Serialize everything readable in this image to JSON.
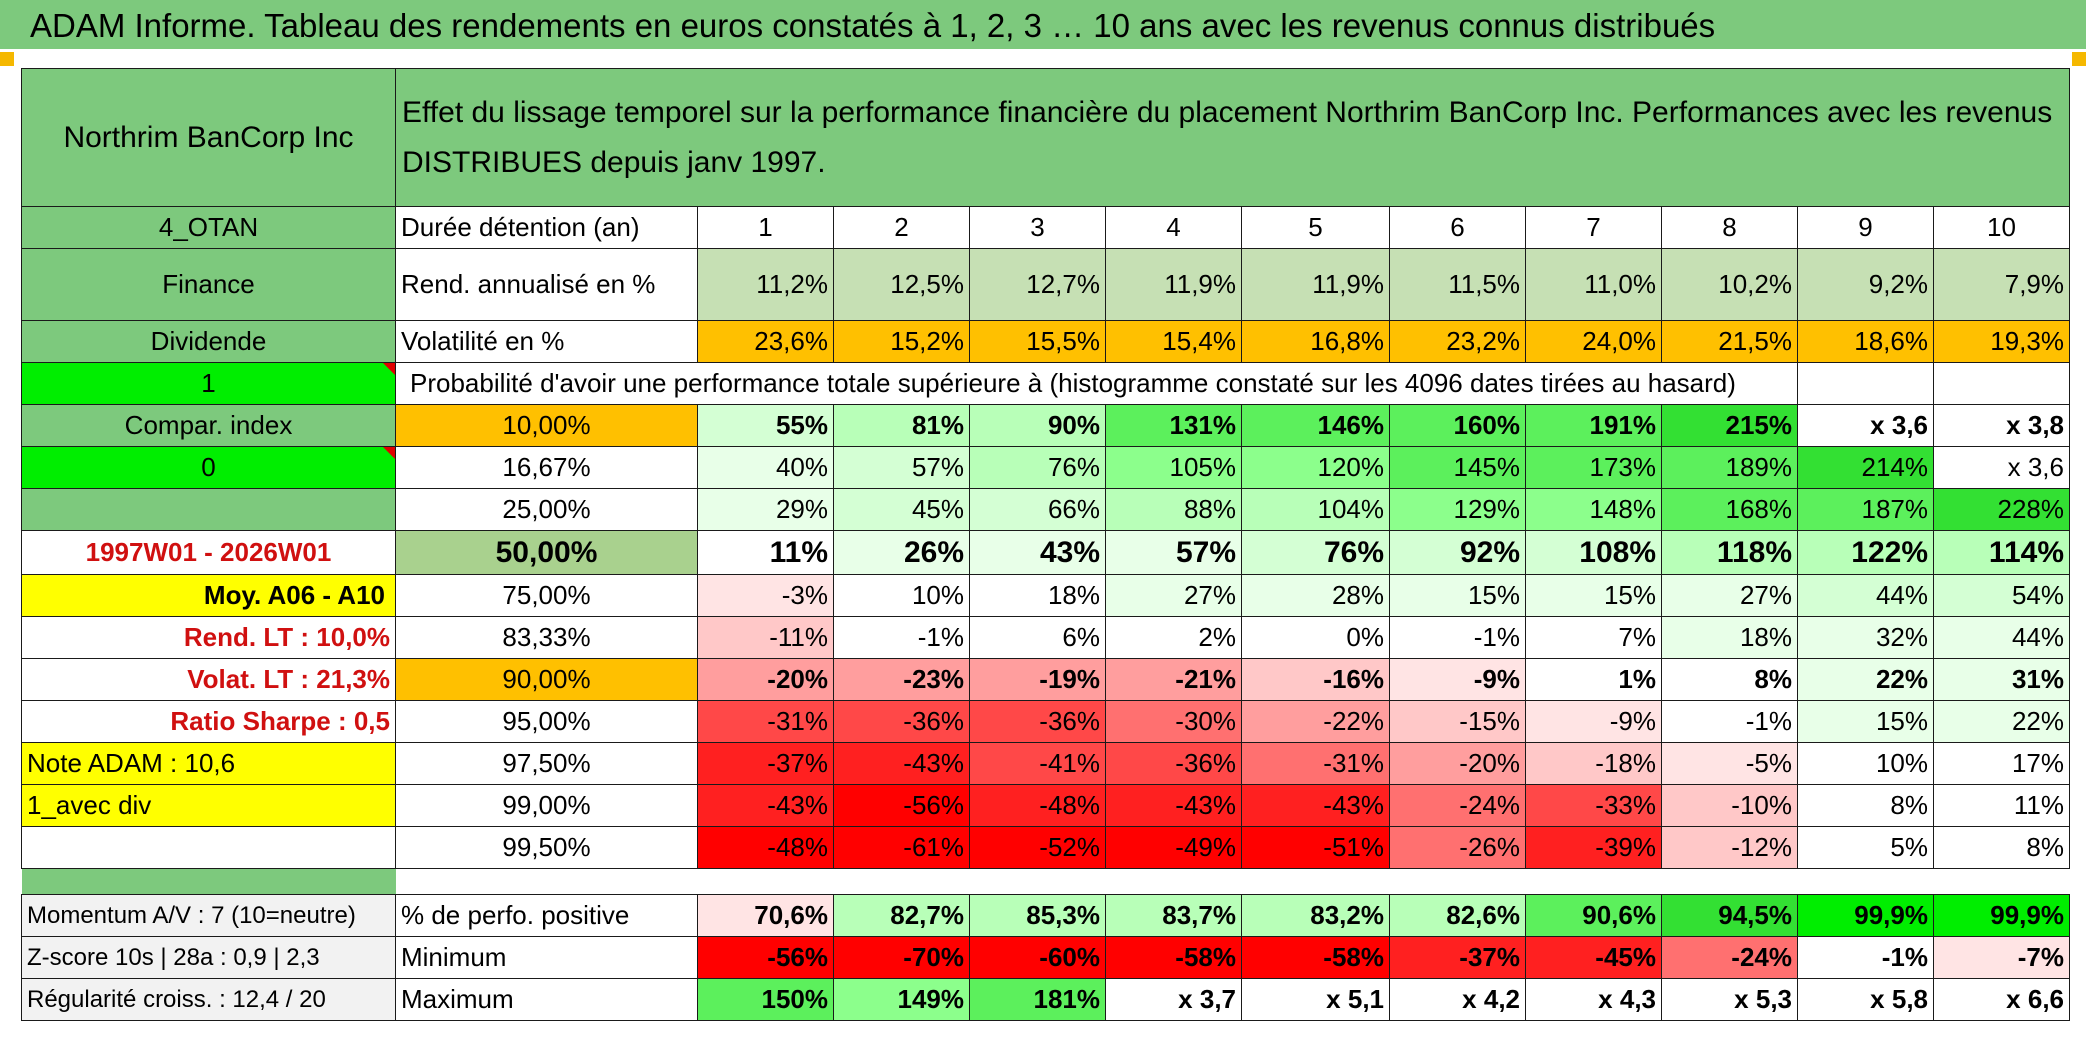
{
  "title": "ADAM Informe. Tableau des rendements en euros constatés à 1, 2, 3 … 10 ans avec les revenus connus distribués",
  "header": {
    "company": "Northrim BanCorp Inc",
    "description_line1": "Effet du lissage temporel sur la performance financière du placement Northrim BanCorp Inc. Performances avec les revenus",
    "description_line2": "DISTRIBUES depuis janv 1997."
  },
  "side": {
    "code": "4_OTAN",
    "sector": "Finance",
    "type": "Dividende",
    "value1": "1",
    "compar_index": "Compar. index",
    "value0": "0",
    "period": "1997W01 - 2026W01",
    "moy": "Moy. A06 - A10",
    "rend_lt": "Rend. LT :    10,0%",
    "volat_lt": "Volat. LT :    21,3%",
    "sharpe": "Ratio Sharpe :    0,5",
    "note": "Note ADAM : 10,6",
    "avec_div": "1_avec div",
    "momentum": "Momentum A/V : 7 (10=neutre)",
    "zscore": "Z-score 10s | 28a : 0,9 | 2,3",
    "regularite": "Régularité croiss. : 12,4 / 20"
  },
  "labels": {
    "duree": "Durée détention (an)",
    "rend": "Rend. annualisé en %",
    "volat": "Volatilité en %",
    "proba": "Probabilité d'avoir une performance totale supérieure à (histogramme constaté sur les 4096 dates tirées au hasard)",
    "perf_pos": "% de perfo. positive",
    "minimum": "Minimum",
    "maximum": "Maximum"
  },
  "years": [
    "1",
    "2",
    "3",
    "4",
    "5",
    "6",
    "7",
    "8",
    "9",
    "10"
  ],
  "rend": [
    "11,2%",
    "12,5%",
    "12,7%",
    "11,9%",
    "11,9%",
    "11,5%",
    "11,0%",
    "10,2%",
    "9,2%",
    "7,9%"
  ],
  "volat": [
    "23,6%",
    "15,2%",
    "15,5%",
    "15,4%",
    "16,8%",
    "23,2%",
    "24,0%",
    "21,5%",
    "18,6%",
    "19,3%"
  ],
  "quantiles": [
    {
      "label": "10,00%",
      "values": [
        "55%",
        "81%",
        "90%",
        "131%",
        "146%",
        "160%",
        "191%",
        "215%",
        "x 3,6",
        "x 3,8"
      ]
    },
    {
      "label": "16,67%",
      "values": [
        "40%",
        "57%",
        "76%",
        "105%",
        "120%",
        "145%",
        "173%",
        "189%",
        "214%",
        "x 3,6"
      ]
    },
    {
      "label": "25,00%",
      "values": [
        "29%",
        "45%",
        "66%",
        "88%",
        "104%",
        "129%",
        "148%",
        "168%",
        "187%",
        "228%"
      ]
    },
    {
      "label": "50,00%",
      "values": [
        "11%",
        "26%",
        "43%",
        "57%",
        "76%",
        "92%",
        "108%",
        "118%",
        "122%",
        "114%"
      ]
    },
    {
      "label": "75,00%",
      "values": [
        "-3%",
        "10%",
        "18%",
        "27%",
        "28%",
        "15%",
        "15%",
        "27%",
        "44%",
        "54%"
      ]
    },
    {
      "label": "83,33%",
      "values": [
        "-11%",
        "-1%",
        "6%",
        "2%",
        "0%",
        "-1%",
        "7%",
        "18%",
        "32%",
        "44%"
      ]
    },
    {
      "label": "90,00%",
      "values": [
        "-20%",
        "-23%",
        "-19%",
        "-21%",
        "-16%",
        "-9%",
        "1%",
        "8%",
        "22%",
        "31%"
      ]
    },
    {
      "label": "95,00%",
      "values": [
        "-31%",
        "-36%",
        "-36%",
        "-30%",
        "-22%",
        "-15%",
        "-9%",
        "-1%",
        "15%",
        "22%"
      ]
    },
    {
      "label": "97,50%",
      "values": [
        "-37%",
        "-43%",
        "-41%",
        "-36%",
        "-31%",
        "-20%",
        "-18%",
        "-5%",
        "10%",
        "17%"
      ]
    },
    {
      "label": "99,00%",
      "values": [
        "-43%",
        "-56%",
        "-48%",
        "-43%",
        "-43%",
        "-24%",
        "-33%",
        "-10%",
        "8%",
        "11%"
      ]
    },
    {
      "label": "99,50%",
      "values": [
        "-48%",
        "-61%",
        "-52%",
        "-49%",
        "-51%",
        "-26%",
        "-39%",
        "-12%",
        "5%",
        "8%"
      ]
    }
  ],
  "perf_pos": [
    "70,6%",
    "82,7%",
    "85,3%",
    "83,7%",
    "83,2%",
    "82,6%",
    "90,6%",
    "94,5%",
    "99,9%",
    "99,9%"
  ],
  "minimum": [
    "-56%",
    "-70%",
    "-60%",
    "-58%",
    "-58%",
    "-37%",
    "-45%",
    "-24%",
    "-1%",
    "-7%"
  ],
  "maximum": [
    "150%",
    "149%",
    "181%",
    "x 3,7",
    "x 5,1",
    "x 4,2",
    "x 4,3",
    "x 5,3",
    "x 5,8",
    "x 6,6"
  ],
  "colors": {
    "header_green": "#7dc97d",
    "orange": "#ffc000",
    "yellow": "#ffff00",
    "bright_green": "#00ee00",
    "red_text": "#d01010"
  }
}
